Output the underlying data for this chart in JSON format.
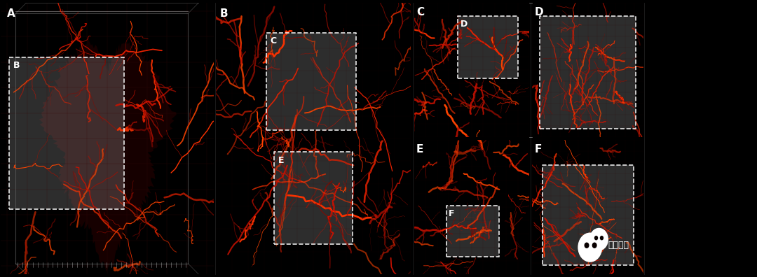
{
  "bg_color": "#000000",
  "fig_width": 10.8,
  "fig_height": 3.96,
  "panel_labels": [
    "A",
    "B",
    "C",
    "D",
    "E",
    "F"
  ],
  "label_color": "#ffffff",
  "label_fontsize": 11,
  "dashed_box_color": "#ffffff",
  "grid_color": "#440000",
  "vessel_color_bright": "#ff2200",
  "vessel_color_mid": "#cc1100",
  "vessel_color_dim": "#660000",
  "wechat_text": "罗辑科学",
  "wechat_color": "#ffffff",
  "seed_A": 42,
  "seed_B": 100,
  "seed_C": 200,
  "seed_D": 300,
  "seed_E": 400,
  "seed_F": 500,
  "colors_bright": [
    "#ff3300",
    "#ff4400",
    "#ee2200",
    "#cc1100"
  ],
  "colors_mid": [
    "#cc1100",
    "#aa0e00",
    "#880800"
  ],
  "colors_dim": [
    "#550500",
    "#440400",
    "#330300"
  ]
}
